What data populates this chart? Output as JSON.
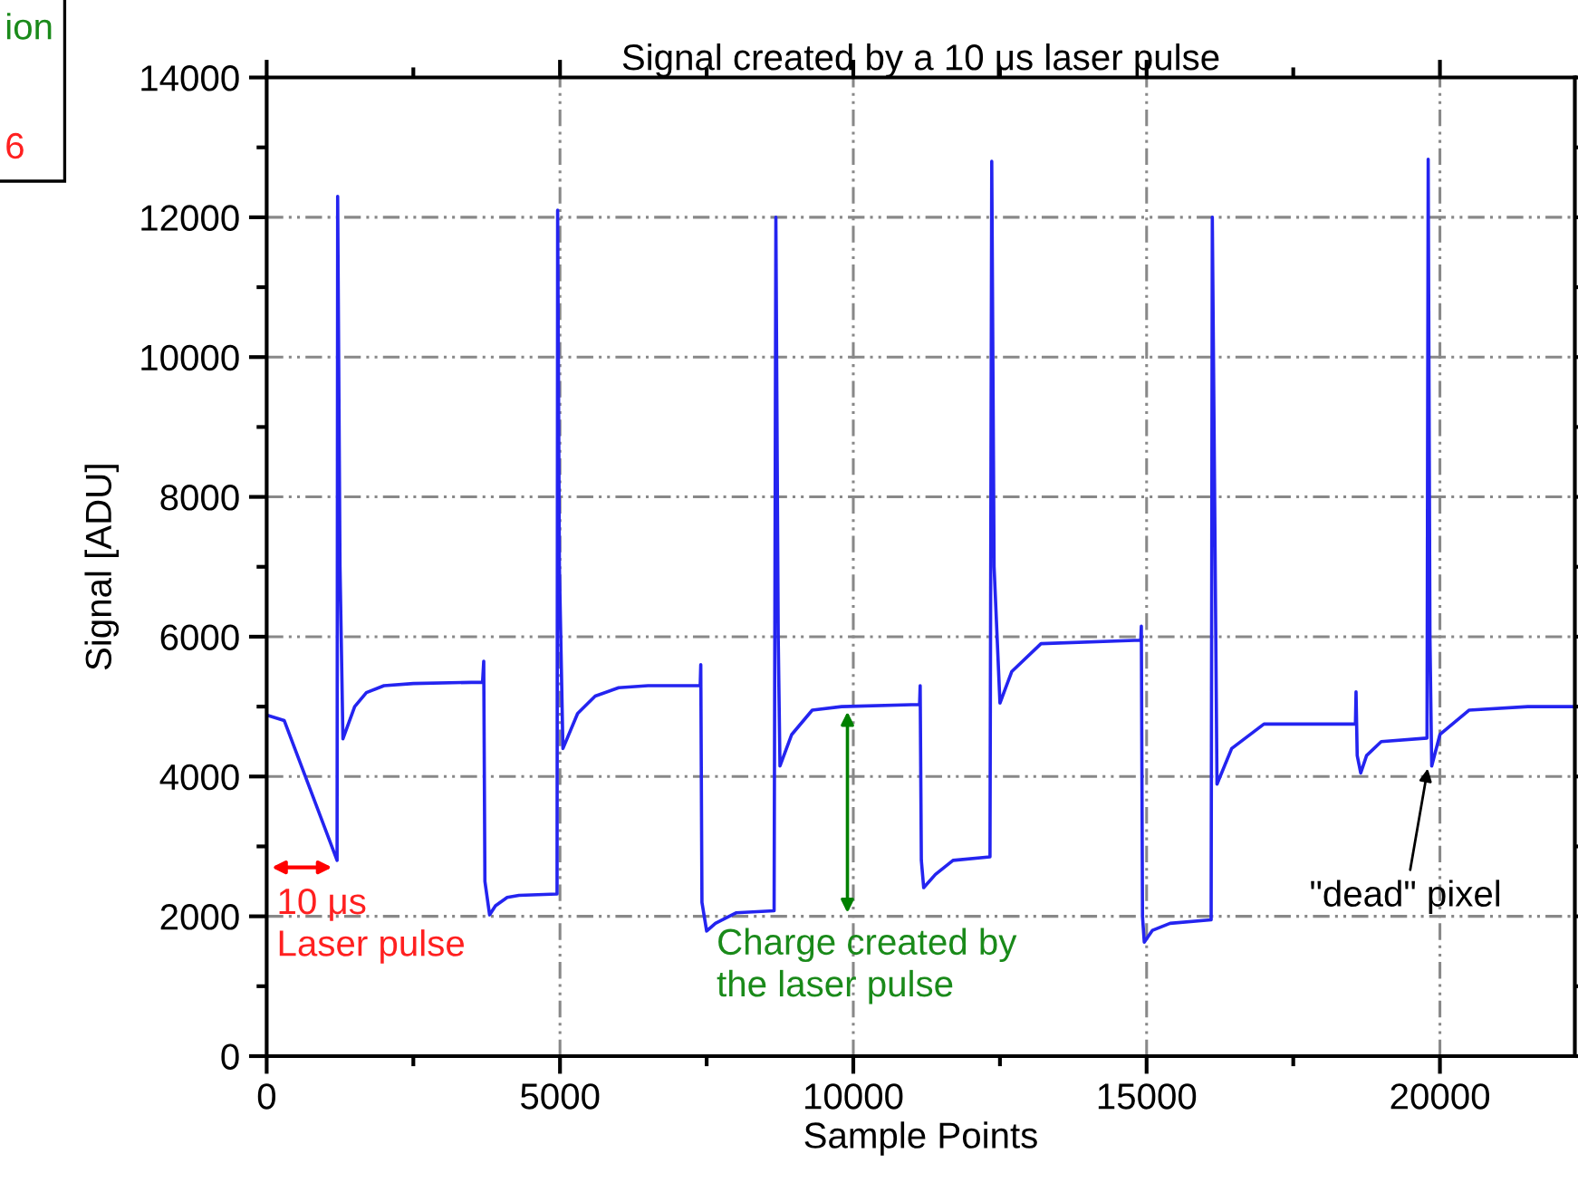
{
  "chart_data": {
    "type": "line",
    "title": "Signal created by a 10 μs laser pulse",
    "xlabel": "Sample Points",
    "ylabel": "Signal [ADU]",
    "series": [
      {
        "color": "#2424f0",
        "x": [
          0,
          300,
          1200,
          1210,
          1250,
          1300,
          1500,
          1700,
          2000,
          2500,
          3680,
          3700,
          3720,
          3800,
          3900,
          4100,
          4300,
          4950,
          4960,
          4990,
          5050,
          5300,
          5600,
          6000,
          6500,
          7390,
          7400,
          7420,
          7500,
          7650,
          8000,
          8650,
          8680,
          8720,
          8750,
          8950,
          9300,
          9800,
          11130,
          11140,
          11160,
          11200,
          11400,
          11700,
          12330,
          12360,
          12400,
          12500,
          12700,
          13200,
          14900,
          14910,
          14930,
          14960,
          15100,
          15400,
          16100,
          16120,
          16150,
          16200,
          16450,
          17000,
          18560,
          18570,
          18590,
          18650,
          18750,
          19000,
          19780,
          19800,
          19830,
          19860,
          20000,
          20500,
          21500,
          22300
        ],
        "values": [
          4880,
          4800,
          2800,
          12300,
          7000,
          4540,
          5000,
          5200,
          5300,
          5330,
          5350,
          5650,
          2500,
          2020,
          2150,
          2270,
          2300,
          2320,
          12100,
          7000,
          4400,
          4900,
          5150,
          5270,
          5300,
          5300,
          5600,
          2200,
          1790,
          1900,
          2050,
          2080,
          12000,
          6000,
          4150,
          4600,
          4950,
          5000,
          5030,
          5300,
          2800,
          2410,
          2600,
          2800,
          2850,
          12800,
          7000,
          5050,
          5500,
          5900,
          5950,
          6150,
          2000,
          1630,
          1800,
          1900,
          1950,
          12000,
          9000,
          3890,
          4400,
          4750,
          4750,
          5210,
          4300,
          4050,
          4300,
          4500,
          4550,
          12830,
          6000,
          4150,
          4600,
          4950,
          5000,
          5000
        ]
      }
    ],
    "xlim": [
      0,
      22300
    ],
    "ylim": [
      0,
      14000
    ],
    "xticks": [
      0,
      5000,
      10000,
      15000,
      20000
    ],
    "yticks": [
      0,
      2000,
      4000,
      6000,
      8000,
      10000,
      12000,
      14000
    ],
    "grid": true,
    "annotations": [
      "ion",
      "6",
      {
        "text": "10 μs\nLaser pulse",
        "x": 1200,
        "y": 2700
      },
      {
        "text": "Charge created by\nthe laser pulse",
        "x": 9900,
        "y": 5000
      },
      {
        "text": "\"dead\" pixel",
        "x": 19800,
        "y": 4150
      }
    ]
  }
}
